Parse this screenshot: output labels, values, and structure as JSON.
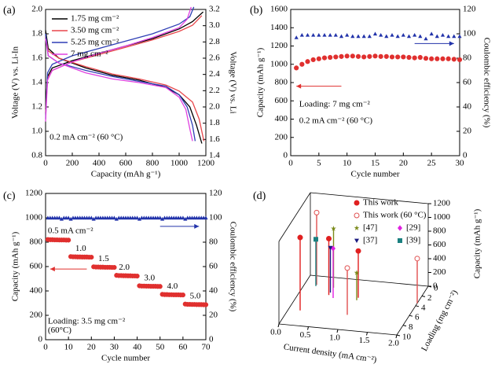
{
  "chart_data": [
    {
      "type": "line",
      "label": "(a)",
      "xlabel": "Capacity (mAh g⁻¹)",
      "ylabel": "Voltage (V) vs. Li-In",
      "y2label": "Voltage (V) vs. Li",
      "xlim": [
        0,
        1200
      ],
      "xticks": [
        0,
        200,
        400,
        600,
        800,
        1000,
        1200
      ],
      "ylim": [
        0.8,
        2.0
      ],
      "yticks": [
        0.8,
        {
          "value": 1,
          "label": "1.0"
        },
        1.2,
        1.4,
        1.6,
        1.8,
        {
          "value": 2,
          "label": "2.0"
        }
      ],
      "y2lim": [
        1.4,
        3.2
      ],
      "y2ticks": [
        1.4,
        1.6,
        1.8,
        {
          "value": 2,
          "label": "2.0"
        },
        2.2,
        2.4,
        2.6,
        2.8,
        {
          "value": 3,
          "label": "3.0"
        },
        3.2
      ],
      "legend": "upper left",
      "annotations": [
        "0.2 mA cm⁻² (60 °C)"
      ],
      "series": [
        {
          "name": "1.75 mg cm⁻²",
          "color": "#000000",
          "x": [
            0,
            20,
            100,
            300,
            500,
            700,
            900,
            1000,
            1080,
            1130,
            1170,
            null,
            0,
            15,
            50,
            200,
            400,
            600,
            800,
            1000,
            1100,
            1180
          ],
          "values": [
            1.83,
            1.68,
            1.6,
            1.52,
            1.46,
            1.42,
            1.36,
            1.3,
            1.2,
            1.05,
            0.9,
            null,
            1.18,
            1.45,
            1.52,
            1.58,
            1.64,
            1.7,
            1.76,
            1.84,
            1.9,
            1.98
          ]
        },
        {
          "name": "3.50 mg cm⁻²",
          "color": "#e8474b",
          "x": [
            0,
            20,
            100,
            300,
            500,
            700,
            900,
            1000,
            1100,
            1150,
            1185,
            null,
            0,
            15,
            50,
            200,
            400,
            600,
            800,
            1000,
            1100,
            1170
          ],
          "values": [
            1.78,
            1.66,
            1.6,
            1.53,
            1.47,
            1.43,
            1.38,
            1.33,
            1.24,
            1.1,
            0.92,
            null,
            1.15,
            1.43,
            1.5,
            1.57,
            1.63,
            1.69,
            1.75,
            1.82,
            1.87,
            1.95
          ]
        },
        {
          "name": "5.25 mg cm⁻²",
          "color": "#2f3fb5",
          "x": [
            0,
            20,
            100,
            300,
            500,
            700,
            900,
            1000,
            1060,
            1100,
            1120,
            null,
            0,
            15,
            50,
            200,
            400,
            600,
            800,
            1000,
            1080,
            1110
          ],
          "values": [
            1.8,
            1.62,
            1.56,
            1.5,
            1.45,
            1.41,
            1.37,
            1.3,
            1.2,
            1.05,
            0.92,
            null,
            1.1,
            1.48,
            1.55,
            1.62,
            1.68,
            1.74,
            1.8,
            1.88,
            1.94,
            2.02
          ]
        },
        {
          "name": "7 mg cm⁻²",
          "color": "#e040e0",
          "x": [
            0,
            20,
            100,
            300,
            500,
            700,
            900,
            1000,
            1050,
            1080,
            1100,
            null,
            0,
            15,
            50,
            200,
            400,
            600,
            800,
            1000,
            1060,
            1090
          ],
          "values": [
            1.76,
            1.62,
            1.56,
            1.48,
            1.43,
            1.4,
            1.36,
            1.28,
            1.18,
            1.02,
            0.92,
            null,
            1.08,
            1.42,
            1.5,
            1.57,
            1.64,
            1.7,
            1.77,
            1.85,
            1.92,
            2.02
          ]
        }
      ]
    },
    {
      "type": "scatter",
      "label": "(b)",
      "xlabel": "Cycle number",
      "ylabel": "Capacity (mAh g⁻¹)",
      "y2label": "Coulombic efficiency (%)",
      "xlim": [
        0,
        30
      ],
      "xticks": [
        0,
        5,
        10,
        15,
        20,
        25,
        30
      ],
      "ylim": [
        0,
        1600
      ],
      "yticks": [
        0,
        200,
        400,
        600,
        800,
        1000,
        1200,
        1400,
        1600
      ],
      "y2lim": [
        0,
        120
      ],
      "y2ticks": [
        0,
        20,
        40,
        60,
        80,
        100,
        120
      ],
      "annotations": [
        "Loading: 7 mg cm⁻²",
        "0.2 mA cm⁻² (60 °C)"
      ],
      "x": [
        1,
        2,
        3,
        4,
        5,
        6,
        7,
        8,
        9,
        10,
        11,
        12,
        13,
        14,
        15,
        16,
        17,
        18,
        19,
        20,
        21,
        22,
        23,
        24,
        25,
        26,
        27,
        28,
        29,
        30
      ],
      "series": [
        {
          "color": "#e0302f",
          "marker": "circle",
          "values": [
            960,
            1000,
            1030,
            1050,
            1060,
            1070,
            1075,
            1080,
            1085,
            1090,
            1090,
            1085,
            1080,
            1085,
            1090,
            1085,
            1085,
            1080,
            1080,
            1080,
            1075,
            1070,
            1075,
            1065,
            1060,
            1060,
            1060,
            1060,
            1055,
            1050
          ]
        },
        {
          "color": "#2233aa",
          "marker": "triangle",
          "axis": "y2",
          "values": [
            97,
            99,
            99,
            99,
            99,
            99,
            99,
            99,
            98,
            99,
            98,
            98,
            98,
            98,
            100,
            99,
            98,
            99,
            98,
            99,
            98,
            99,
            98,
            96,
            100,
            98,
            99,
            98,
            98,
            98
          ]
        }
      ]
    },
    {
      "type": "scatter",
      "label": "(c)",
      "xlabel": "Cycle number",
      "ylabel": "Capacity (mAh g⁻¹)",
      "y2label": "Coulombic efficiency (%)",
      "xlim": [
        0,
        70
      ],
      "xticks": [
        0,
        10,
        20,
        30,
        40,
        50,
        60,
        70
      ],
      "ylim": [
        0,
        1200
      ],
      "yticks": [
        0,
        200,
        400,
        600,
        800,
        1000,
        1200
      ],
      "y2lim": [
        0,
        120
      ],
      "y2ticks": [
        0,
        20,
        40,
        60,
        80,
        100,
        120
      ],
      "annotations": [
        "0.5 mA cm⁻²",
        "1.0",
        "1.5",
        "2.0",
        "3.0",
        "4.0",
        "5.0",
        "Loading: 3.5 mg cm⁻²",
        "(60°C)"
      ],
      "x": [
        1,
        2,
        3,
        4,
        5,
        6,
        7,
        8,
        9,
        10,
        11,
        12,
        13,
        14,
        15,
        16,
        17,
        18,
        19,
        20,
        21,
        22,
        23,
        24,
        25,
        26,
        27,
        28,
        29,
        30,
        31,
        32,
        33,
        34,
        35,
        36,
        37,
        38,
        39,
        40,
        41,
        42,
        43,
        44,
        45,
        46,
        47,
        48,
        49,
        50,
        51,
        52,
        53,
        54,
        55,
        56,
        57,
        58,
        59,
        60,
        61,
        62,
        63,
        64,
        65,
        66,
        67,
        68,
        69,
        70
      ],
      "series": [
        {
          "color": "#e0302f",
          "marker": "circle",
          "values": [
            822,
            820,
            820,
            819,
            819,
            818,
            818,
            818,
            817,
            817,
            682,
            680,
            680,
            679,
            679,
            678,
            678,
            678,
            677,
            677,
            598,
            596,
            596,
            595,
            595,
            594,
            594,
            594,
            593,
            593,
            528,
            526,
            526,
            525,
            525,
            524,
            524,
            523,
            523,
            522,
            442,
            440,
            440,
            439,
            439,
            438,
            438,
            438,
            437,
            437,
            372,
            370,
            370,
            369,
            369,
            368,
            368,
            368,
            367,
            367,
            292,
            290,
            290,
            289,
            289,
            288,
            288,
            288,
            287,
            287
          ]
        },
        {
          "color": "#2233aa",
          "marker": "triangle",
          "axis": "y2",
          "values": [
            100,
            100,
            100,
            100,
            100,
            100,
            99,
            100,
            100,
            100,
            99,
            100,
            100,
            100,
            100,
            100,
            100,
            100,
            100,
            100,
            99,
            100,
            100,
            100,
            100,
            100,
            100,
            100,
            100,
            100,
            99,
            100,
            100,
            100,
            100,
            100,
            100,
            100,
            100,
            100,
            99,
            100,
            100,
            100,
            100,
            100,
            100,
            100,
            100,
            100,
            99,
            100,
            100,
            100,
            100,
            100,
            100,
            100,
            100,
            100,
            99,
            100,
            100,
            100,
            100,
            100,
            100,
            100,
            100,
            100
          ]
        }
      ]
    },
    {
      "type": "stem3d",
      "label": "(d)",
      "xlabel": "Current density (mA cm⁻²)",
      "ylabel": "Loading (mg cm⁻²)",
      "zlabel": "Capacity (mAh g⁻¹)",
      "xlim": [
        0,
        2
      ],
      "xticks": [
        {
          "value": 0,
          "label": "0.0"
        },
        0.5,
        {
          "value": 1,
          "label": "1.0"
        },
        1.5,
        {
          "value": 2,
          "label": "2.0"
        }
      ],
      "ylim": [
        0,
        10
      ],
      "yticks": [
        0,
        2,
        4,
        6,
        8,
        10
      ],
      "zlim": [
        0,
        1200
      ],
      "zticks": [
        0,
        200,
        400,
        600,
        800,
        1000,
        1200
      ],
      "series": [
        {
          "name": "This work",
          "color": "#e02020",
          "marker": "circle",
          "x": [
            0.2,
            0.5,
            1.0
          ],
          "y": [
            7,
            3.5,
            3.5
          ],
          "values": [
            1060,
            820,
            680
          ]
        },
        {
          "name": "This work (60 °C)",
          "color": "#e05050",
          "marker": "open-circle",
          "x": [
            0.2,
            1.0,
            2.0
          ],
          "y": [
            1.75,
            7,
            3.5
          ],
          "values": [
            1050,
            680,
            650
          ]
        },
        {
          "name": "[47]",
          "color": "#7a8a1a",
          "marker": "star",
          "x": [
            0.5,
            1.0
          ],
          "y": [
            2,
            4
          ],
          "values": [
            860,
            400
          ]
        },
        {
          "name": "[29]",
          "color": "#e020e0",
          "marker": "diamond",
          "x": [
            0.6
          ],
          "y": [
            4
          ],
          "values": [
            720
          ]
        },
        {
          "name": "[37]",
          "color": "#1a1a80",
          "marker": "triangle-down",
          "x": [
            0.5
          ],
          "y": [
            3
          ],
          "values": [
            650
          ]
        },
        {
          "name": "[39]",
          "color": "#1a8080",
          "marker": "square",
          "x": [
            0.2
          ],
          "y": [
            2
          ],
          "values": [
            680
          ]
        }
      ]
    }
  ]
}
